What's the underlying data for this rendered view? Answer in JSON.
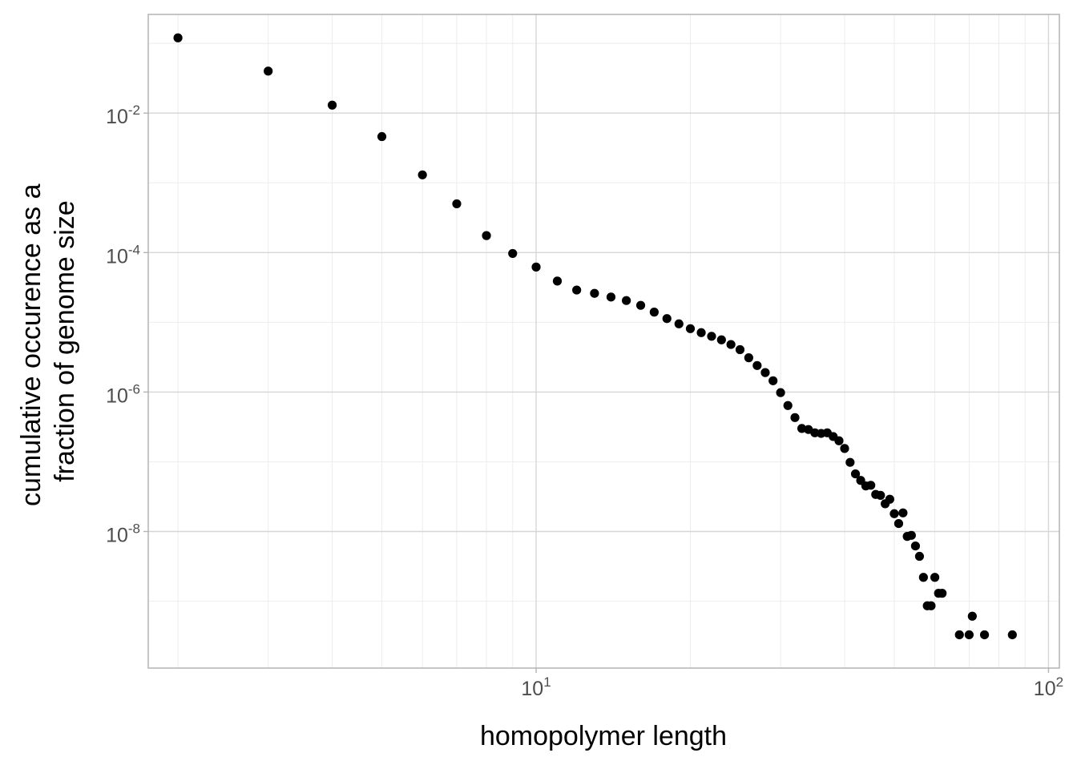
{
  "chart_data": {
    "type": "scatter",
    "xlabel": "homopolymer length",
    "ylabel_lines": [
      "cumulative occurence as a",
      "fraction of genome size"
    ],
    "x_scale": "log10",
    "y_scale": "log10",
    "xlim": [
      1.75,
      105
    ],
    "ylim": [
      1.1e-10,
      0.26
    ],
    "grid": true,
    "legend": "none",
    "x_ticks": [
      {
        "value": 10,
        "base": "10",
        "exp": "1"
      },
      {
        "value": 100,
        "base": "10",
        "exp": "2"
      }
    ],
    "y_ticks": [
      {
        "value": 0.01,
        "base": "10",
        "exp": "-2"
      },
      {
        "value": 0.0001,
        "base": "10",
        "exp": "-4"
      },
      {
        "value": 1e-06,
        "base": "10",
        "exp": "-6"
      },
      {
        "value": 1e-08,
        "base": "10",
        "exp": "-8"
      }
    ],
    "colors": {
      "point": "#000000",
      "grid_major": "#d6d6d6",
      "grid_minor": "#ebebeb",
      "border": "#b3b3b3"
    },
    "points": [
      [
        2,
        0.12
      ],
      [
        3,
        0.04
      ],
      [
        4,
        0.013
      ],
      [
        5,
        0.0046
      ],
      [
        6,
        0.0013
      ],
      [
        7,
        0.0005
      ],
      [
        8,
        0.000175
      ],
      [
        9,
        9.7e-05
      ],
      [
        10,
        6.2e-05
      ],
      [
        11,
        3.9e-05
      ],
      [
        12,
        2.9e-05
      ],
      [
        13,
        2.6e-05
      ],
      [
        14,
        2.3e-05
      ],
      [
        15,
        2.05e-05
      ],
      [
        16,
        1.75e-05
      ],
      [
        17,
        1.4e-05
      ],
      [
        18,
        1.13e-05
      ],
      [
        19,
        9.5e-06
      ],
      [
        20,
        8.1e-06
      ],
      [
        21,
        7.1e-06
      ],
      [
        22,
        6.3e-06
      ],
      [
        23,
        5.6e-06
      ],
      [
        24,
        4.8e-06
      ],
      [
        25,
        4.05e-06
      ],
      [
        26,
        3.1e-06
      ],
      [
        27,
        2.4e-06
      ],
      [
        28,
        1.9e-06
      ],
      [
        29,
        1.45e-06
      ],
      [
        30,
        9.8e-07
      ],
      [
        31,
        6.4e-07
      ],
      [
        32,
        4.3e-07
      ],
      [
        33,
        3e-07
      ],
      [
        34,
        2.9e-07
      ],
      [
        35,
        2.6e-07
      ],
      [
        36,
        2.55e-07
      ],
      [
        37,
        2.6e-07
      ],
      [
        38,
        2.3e-07
      ],
      [
        39,
        2e-07
      ],
      [
        40,
        1.55e-07
      ],
      [
        41,
        9.8e-08
      ],
      [
        42,
        6.7e-08
      ],
      [
        43,
        5.4e-08
      ],
      [
        44,
        4.5e-08
      ],
      [
        45,
        4.6e-08
      ],
      [
        46,
        3.4e-08
      ],
      [
        47,
        3.3e-08
      ],
      [
        48,
        2.5e-08
      ],
      [
        49,
        2.9e-08
      ],
      [
        50,
        1.8e-08
      ],
      [
        51,
        1.3e-08
      ],
      [
        52,
        1.85e-08
      ],
      [
        53,
        8.5e-09
      ],
      [
        54,
        8.8e-09
      ],
      [
        55,
        6.2e-09
      ],
      [
        56,
        4.4e-09
      ],
      [
        57,
        2.2e-09
      ],
      [
        58,
        8.6e-10
      ],
      [
        59,
        8.6e-10
      ],
      [
        60,
        2.2e-09
      ],
      [
        61,
        1.3e-09
      ],
      [
        62,
        1.3e-09
      ],
      [
        67,
        3.3e-10
      ],
      [
        70,
        3.3e-10
      ],
      [
        71,
        6.1e-10
      ],
      [
        75,
        3.3e-10
      ],
      [
        85,
        3.3e-10
      ]
    ]
  }
}
